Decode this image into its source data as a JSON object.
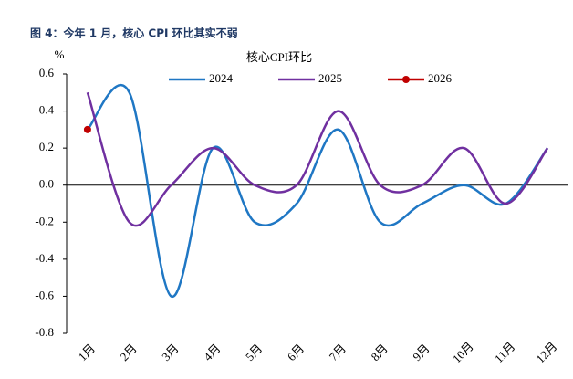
{
  "chart_data": {
    "type": "line",
    "title": "图 4：今年 1 月，核心 CPI 环比其实不弱",
    "y_label": "%",
    "legend_title": "核心CPI环比",
    "categories": [
      "1月",
      "2月",
      "3月",
      "4月",
      "5月",
      "6月",
      "7月",
      "8月",
      "9月",
      "10月",
      "11月",
      "12月"
    ],
    "series": [
      {
        "name": "2024",
        "color": "#1f77c4",
        "values": [
          0.3,
          0.5,
          -0.6,
          0.2,
          -0.2,
          -0.1,
          0.3,
          -0.2,
          -0.1,
          0.0,
          -0.1,
          0.2
        ]
      },
      {
        "name": "2025",
        "color": "#7030a0",
        "values": [
          0.5,
          -0.2,
          0.0,
          0.2,
          0.0,
          0.0,
          0.4,
          0.0,
          0.0,
          0.2,
          -0.1,
          0.2
        ]
      },
      {
        "name": "2026",
        "color": "#c00000",
        "values": [
          0.3,
          null,
          null,
          null,
          null,
          null,
          null,
          null,
          null,
          null,
          null,
          null
        ]
      }
    ],
    "ylim": [
      -0.8,
      0.6
    ],
    "yticks": [
      0.6,
      0.4,
      0.2,
      {
        "value": 0,
        "label": "0.0"
      },
      -0.2,
      -0.4,
      -0.6,
      -0.8
    ],
    "legend": "top"
  }
}
